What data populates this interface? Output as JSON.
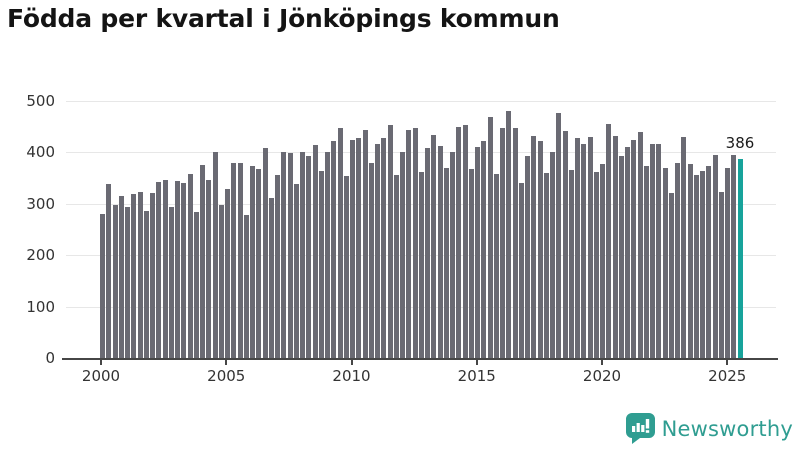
{
  "title": "Födda per kvartal i Jönköpings kommun",
  "branding": {
    "logo_text": "Newsworthy",
    "logo_icon": "speech-bubble-bar-chart",
    "logo_color": "#2f9d91"
  },
  "chart_data": {
    "type": "bar",
    "title": "Födda per kvartal i Jönköpings kommun",
    "x_unit": "quarter",
    "start_period": "2000-Q1",
    "end_period": "2025-Q3",
    "x_tick_labels": [
      "2000",
      "2005",
      "2010",
      "2015",
      "2020",
      "2025"
    ],
    "y_tick_labels": [
      "0",
      "100",
      "200",
      "300",
      "400",
      "500"
    ],
    "y_ticks": [
      0,
      100,
      200,
      300,
      400,
      500
    ],
    "ylim": [
      0,
      500
    ],
    "grid": "horizontal",
    "legend": "none",
    "values": [
      280,
      338,
      297,
      314,
      294,
      319,
      323,
      286,
      320,
      342,
      346,
      294,
      344,
      340,
      358,
      284,
      375,
      346,
      400,
      298,
      328,
      379,
      379,
      278,
      373,
      368,
      408,
      311,
      356,
      400,
      398,
      338,
      400,
      392,
      414,
      364,
      401,
      421,
      447,
      354,
      423,
      427,
      443,
      379,
      415,
      428,
      453,
      356,
      401,
      443,
      447,
      361,
      408,
      434,
      411,
      370,
      400,
      448,
      453,
      368,
      409,
      421,
      469,
      358,
      447,
      479,
      447,
      340,
      392,
      432,
      422,
      359,
      400,
      476,
      440,
      366,
      428,
      415,
      430,
      361,
      377,
      454,
      432,
      393,
      409,
      424,
      439,
      372,
      415,
      415,
      370,
      320,
      379,
      430,
      377,
      356,
      364,
      372,
      394,
      323,
      369,
      394,
      386
    ],
    "highlight_index": 102,
    "highlight_value": 386,
    "highlight_label": "386",
    "colors": {
      "bar": "#6a6a73",
      "highlight": "#17a39b",
      "grid": "#e7e7e7",
      "axis": "#464646",
      "labels": "#333333"
    }
  }
}
